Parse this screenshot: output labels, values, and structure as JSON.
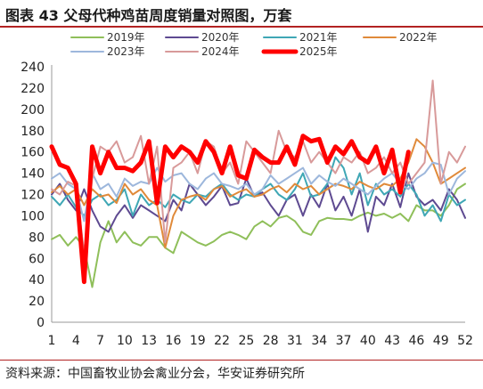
{
  "figure": {
    "title": "图表 43  父母代种鸡苗周度销量对照图，万套",
    "source": "资料来源：中国畜牧业协会禽业分会，华安证券研究所"
  },
  "chart_data": {
    "type": "line",
    "ylim": [
      0,
      240
    ],
    "yticks": [
      0,
      20,
      40,
      60,
      80,
      100,
      120,
      140,
      160,
      180,
      200,
      220,
      240
    ],
    "xlim": [
      1,
      52
    ],
    "xticks": [
      1,
      4,
      7,
      10,
      13,
      16,
      19,
      22,
      25,
      28,
      31,
      34,
      37,
      40,
      43,
      46,
      49,
      52
    ],
    "grid": false,
    "legend_position": "top",
    "series": [
      {
        "name": "2019年",
        "color": "#8fbf5a",
        "width": 2,
        "x": [
          1,
          2,
          3,
          4,
          5,
          6,
          7,
          8,
          9,
          10,
          11,
          12,
          13,
          14,
          15,
          16,
          17,
          18,
          19,
          20,
          21,
          22,
          23,
          24,
          25,
          26,
          27,
          28,
          29,
          30,
          31,
          32,
          33,
          34,
          35,
          36,
          37,
          38,
          39,
          40,
          41,
          42,
          43,
          44,
          45,
          46,
          47,
          48,
          49,
          50,
          51,
          52
        ],
        "y": [
          78,
          82,
          72,
          80,
          70,
          33,
          75,
          95,
          75,
          85,
          75,
          72,
          80,
          80,
          70,
          65,
          85,
          80,
          75,
          72,
          76,
          82,
          85,
          82,
          78,
          90,
          95,
          90,
          98,
          100,
          95,
          85,
          82,
          95,
          98,
          97,
          97,
          96,
          100,
          103,
          100,
          102,
          98,
          102,
          95,
          110,
          105,
          105,
          100,
          110,
          125,
          130
        ]
      },
      {
        "name": "2020年",
        "color": "#5e4a91",
        "width": 2,
        "x": [
          1,
          2,
          3,
          4,
          5,
          6,
          7,
          8,
          9,
          10,
          11,
          12,
          13,
          14,
          15,
          16,
          17,
          18,
          19,
          20,
          21,
          22,
          23,
          24,
          25,
          26,
          27,
          28,
          29,
          30,
          31,
          32,
          33,
          34,
          35,
          36,
          37,
          38,
          39,
          40,
          41,
          42,
          43,
          44,
          45,
          46,
          47,
          48,
          49,
          50,
          51,
          52
        ],
        "y": [
          120,
          130,
          115,
          105,
          125,
          105,
          90,
          85,
          100,
          110,
          98,
          110,
          105,
          100,
          95,
          115,
          105,
          130,
          120,
          110,
          118,
          128,
          110,
          112,
          135,
          118,
          122,
          110,
          100,
          115,
          120,
          100,
          120,
          108,
          130,
          105,
          118,
          100,
          125,
          85,
          118,
          110,
          130,
          108,
          140,
          118,
          110,
          115,
          105,
          125,
          115,
          98
        ]
      },
      {
        "name": "2021年",
        "color": "#3fa7b5",
        "width": 2,
        "x": [
          1,
          2,
          3,
          4,
          5,
          6,
          7,
          8,
          9,
          10,
          11,
          12,
          13,
          14,
          15,
          16,
          17,
          18,
          19,
          20,
          21,
          22,
          23,
          24,
          25,
          26,
          27,
          28,
          29,
          30,
          31,
          32,
          33,
          34,
          35,
          36,
          37,
          38,
          39,
          40,
          41,
          42,
          43,
          44,
          45,
          46,
          47,
          48,
          49,
          50,
          51,
          52
        ],
        "y": [
          118,
          110,
          120,
          108,
          100,
          115,
          120,
          110,
          115,
          125,
          100,
          120,
          110,
          115,
          108,
          120,
          115,
          112,
          120,
          118,
          125,
          130,
          120,
          115,
          120,
          118,
          125,
          130,
          120,
          115,
          125,
          140,
          118,
          120,
          130,
          155,
          145,
          120,
          140,
          110,
          130,
          120,
          125,
          118,
          130,
          120,
          100,
          110,
          95,
          120,
          110,
          115
        ]
      },
      {
        "name": "2022年",
        "color": "#e08a3a",
        "width": 2,
        "x": [
          1,
          2,
          3,
          4,
          5,
          6,
          7,
          8,
          9,
          10,
          11,
          12,
          13,
          14,
          15,
          16,
          17,
          18,
          19,
          20,
          21,
          22,
          23,
          24,
          25,
          26,
          27,
          28,
          29,
          30,
          31,
          32,
          33,
          34,
          35,
          36,
          37,
          38,
          39,
          40,
          41,
          42,
          43,
          44,
          45,
          46,
          47,
          48,
          49,
          50,
          51,
          52
        ],
        "y": [
          122,
          128,
          120,
          125,
          110,
          125,
          118,
          120,
          112,
          130,
          120,
          125,
          115,
          110,
          70,
          100,
          115,
          118,
          120,
          115,
          125,
          128,
          118,
          122,
          125,
          118,
          120,
          125,
          128,
          122,
          130,
          125,
          128,
          120,
          125,
          130,
          128,
          125,
          132,
          128,
          125,
          130,
          128,
          135,
          150,
          172,
          165,
          150,
          130,
          135,
          140,
          145
        ]
      },
      {
        "name": "2023年",
        "color": "#9db7dc",
        "width": 2,
        "x": [
          1,
          2,
          3,
          4,
          5,
          6,
          7,
          8,
          9,
          10,
          11,
          12,
          13,
          14,
          15,
          16,
          17,
          18,
          19,
          20,
          21,
          22,
          23,
          24,
          25,
          26,
          27,
          28,
          29,
          30,
          31,
          32,
          33,
          34,
          35,
          36,
          37,
          38,
          39,
          40,
          41,
          42,
          43,
          44,
          45,
          46,
          47,
          48,
          49,
          50,
          51,
          52
        ],
        "y": [
          135,
          140,
          130,
          125,
          95,
          140,
          125,
          130,
          118,
          135,
          128,
          132,
          130,
          145,
          132,
          138,
          140,
          130,
          125,
          135,
          140,
          130,
          128,
          125,
          130,
          120,
          125,
          138,
          130,
          135,
          140,
          145,
          130,
          138,
          132,
          128,
          135,
          130,
          125,
          120,
          128,
          135,
          140,
          130,
          125,
          135,
          140,
          150,
          148,
          120,
          135,
          142
        ]
      },
      {
        "name": "2024年",
        "color": "#d89a9a",
        "width": 2,
        "x": [
          1,
          2,
          3,
          4,
          5,
          6,
          7,
          8,
          9,
          10,
          11,
          12,
          13,
          14,
          15,
          16,
          17,
          18,
          19,
          20,
          21,
          22,
          23,
          24,
          25,
          26,
          27,
          28,
          29,
          30,
          31,
          32,
          33,
          34,
          35,
          36,
          37,
          38,
          39,
          40,
          41,
          42,
          43,
          44,
          45,
          46,
          47,
          48,
          49,
          50,
          51,
          52
        ],
        "y": [
          125,
          120,
          132,
          128,
          65,
          135,
          165,
          160,
          170,
          150,
          155,
          175,
          130,
          165,
          75,
          145,
          150,
          160,
          140,
          170,
          165,
          140,
          150,
          130,
          170,
          160,
          150,
          140,
          180,
          160,
          155,
          170,
          150,
          160,
          150,
          140,
          155,
          150,
          160,
          140,
          145,
          155,
          140,
          150,
          130,
          140,
          150,
          227,
          130,
          160,
          150,
          165
        ]
      },
      {
        "name": "2025年",
        "color": "#ff0000",
        "width": 5,
        "x": [
          1,
          2,
          3,
          4,
          5,
          6,
          7,
          8,
          9,
          10,
          11,
          12,
          13,
          14,
          15,
          16,
          17,
          18,
          19,
          20,
          21,
          22,
          23,
          24,
          25,
          26,
          27,
          28,
          29,
          30,
          31,
          32,
          33,
          34,
          35,
          36,
          37,
          38,
          39,
          40,
          41,
          42,
          43,
          44,
          45
        ],
        "y": [
          165,
          148,
          145,
          130,
          38,
          165,
          140,
          160,
          145,
          145,
          142,
          150,
          170,
          112,
          165,
          155,
          165,
          160,
          150,
          170,
          160,
          140,
          165,
          138,
          135,
          162,
          155,
          150,
          150,
          165,
          148,
          175,
          170,
          172,
          150,
          165,
          158,
          170,
          155,
          150,
          165,
          140,
          162,
          122,
          160
        ]
      }
    ]
  }
}
